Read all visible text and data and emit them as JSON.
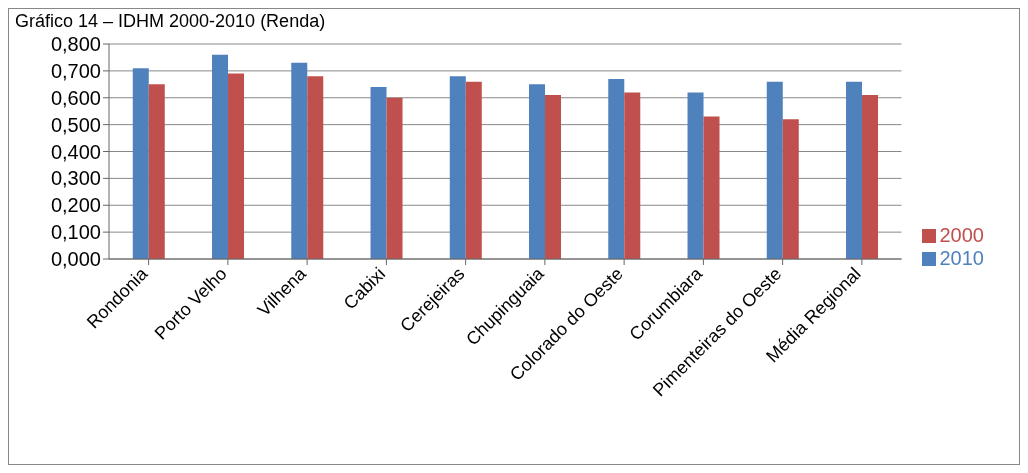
{
  "chart_data": {
    "type": "bar",
    "title": "Gráfico 14 – IDHM 2000-2010 (Renda)",
    "categories": [
      "Rondonia",
      "Porto Velho",
      "Vilhena",
      "Cabixi",
      "Cerejeiras",
      "Chupinguaia",
      "Colorado do Oeste",
      "Corumbiara",
      "Pimenteiras do Oeste",
      "Média Regional"
    ],
    "series": [
      {
        "name": "2010",
        "color": "#4f81bd",
        "values": [
          0.71,
          0.76,
          0.73,
          0.64,
          0.68,
          0.65,
          0.67,
          0.62,
          0.66,
          0.66
        ]
      },
      {
        "name": "2000",
        "color": "#c0504d",
        "values": [
          0.65,
          0.69,
          0.68,
          0.6,
          0.66,
          0.61,
          0.62,
          0.53,
          0.52,
          0.61
        ]
      }
    ],
    "ylim": [
      0,
      0.8
    ],
    "yticks": [
      {
        "value": 0,
        "label": "0,000"
      },
      {
        "value": 0.1,
        "label": "0,100"
      },
      {
        "value": 0.2,
        "label": "0,200"
      },
      {
        "value": 0.3,
        "label": "0,300"
      },
      {
        "value": 0.4,
        "label": "0,400"
      },
      {
        "value": 0.5,
        "label": "0,500"
      },
      {
        "value": 0.6,
        "label": "0,600"
      },
      {
        "value": 0.7,
        "label": "0,700"
      },
      {
        "value": 0.8,
        "label": "0,800"
      }
    ],
    "grid": "y",
    "legend": "right"
  }
}
